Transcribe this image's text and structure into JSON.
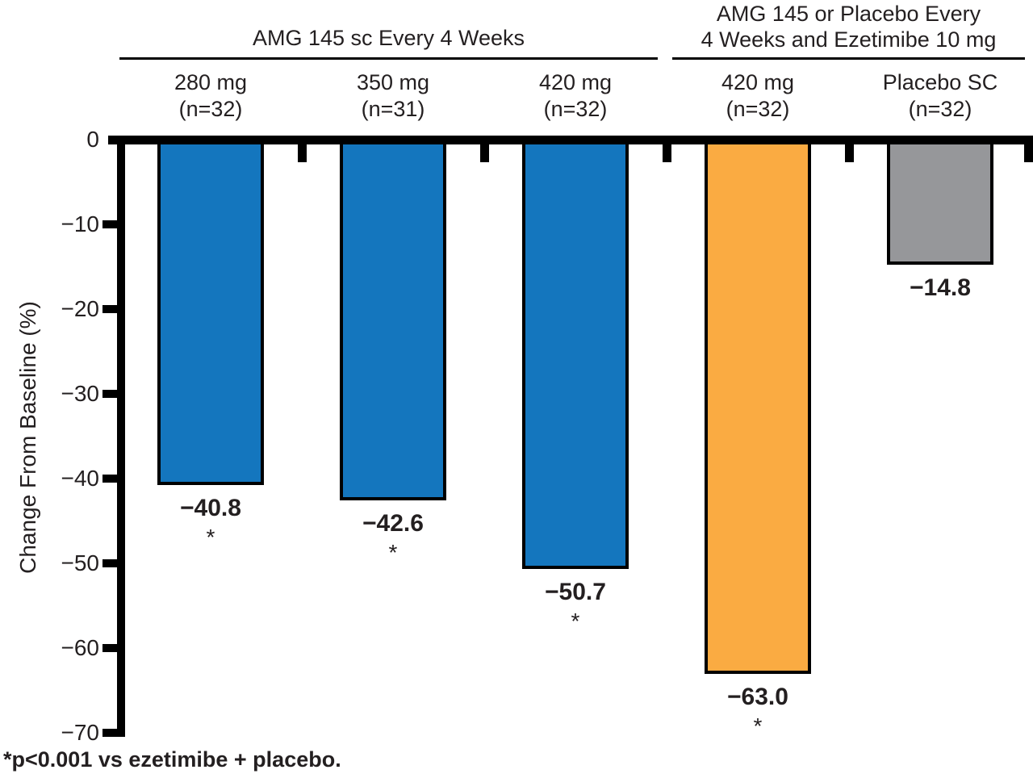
{
  "chart_data": {
    "type": "bar",
    "title": "",
    "xlabel": "",
    "ylabel": "Change From Baseline (%)",
    "ylim": [
      -70,
      0
    ],
    "grid": false,
    "legend": "none",
    "ytick_labels": [
      "0",
      "−10",
      "−20",
      "−30",
      "−40",
      "−50",
      "−60",
      "−70"
    ],
    "group_headers": [
      {
        "label": "AMG 145 sc Every 4 Weeks",
        "spans_bars": [
          0,
          1,
          2
        ]
      },
      {
        "label": "AMG 145 or Placebo Every\n4 Weeks and Ezetimibe 10 mg",
        "spans_bars": [
          3,
          4
        ]
      }
    ],
    "categories": [
      "280 mg (n=32)",
      "350 mg (n=31)",
      "420 mg (n=32)",
      "420 mg (n=32)",
      "Placebo SC (n=32)"
    ],
    "values": [
      -40.8,
      -42.6,
      -50.7,
      -63.0,
      -14.8
    ],
    "bars": [
      {
        "dose_label": "280 mg\n(n=32)",
        "value": -40.8,
        "value_label": "−40.8",
        "sig": "*",
        "color": "#1476BE",
        "group": 0
      },
      {
        "dose_label": "350 mg\n(n=31)",
        "value": -42.6,
        "value_label": "−42.6",
        "sig": "*",
        "color": "#1476BE",
        "group": 0
      },
      {
        "dose_label": "420 mg\n(n=32)",
        "value": -50.7,
        "value_label": "−50.7",
        "sig": "*",
        "color": "#1476BE",
        "group": 0
      },
      {
        "dose_label": "420 mg\n(n=32)",
        "value": -63.0,
        "value_label": "−63.0",
        "sig": "*",
        "color": "#FAAB42",
        "group": 1
      },
      {
        "dose_label": "Placebo SC\n(n=32)",
        "value": -14.8,
        "value_label": "−14.8",
        "sig": "",
        "color": "#96979A",
        "group": 1
      }
    ],
    "footnote": "*p<0.001 vs ezetimibe + placebo.",
    "colors": {
      "amg145_blue": "#1476BE",
      "amg145_ezetimibe_orange": "#FAAB42",
      "placebo_gray": "#96979A",
      "axis_black": "#000000"
    }
  }
}
